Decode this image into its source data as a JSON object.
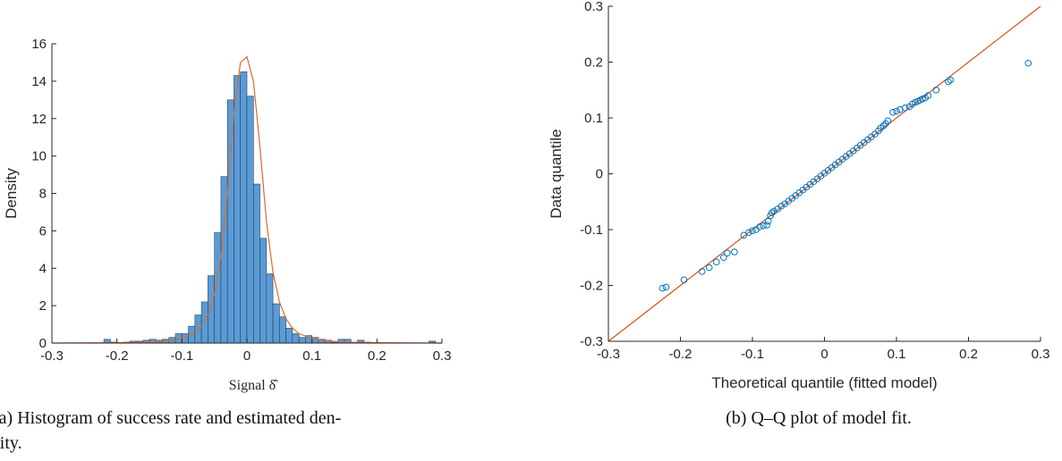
{
  "chart_data": [
    {
      "type": "bar",
      "xlabel": "Signal δ̂",
      "ylabel": "Density",
      "xlim": [
        -0.3,
        0.3
      ],
      "ylim": [
        0,
        16
      ],
      "xticks": [
        "-0.3",
        "-0.2",
        "-0.1",
        "0",
        "0.1",
        "0.2",
        "0.3"
      ],
      "yticks": [
        "0",
        "2",
        "4",
        "6",
        "8",
        "10",
        "12",
        "14",
        "16"
      ],
      "bar_color": "#5b9bd5",
      "curve_color": "#e0692c",
      "histogram": {
        "bin_width": 0.01,
        "bin_lefts": [
          -0.22,
          -0.21,
          -0.2,
          -0.19,
          -0.18,
          -0.17,
          -0.16,
          -0.15,
          -0.14,
          -0.13,
          -0.12,
          -0.11,
          -0.1,
          -0.09,
          -0.08,
          -0.07,
          -0.06,
          -0.05,
          -0.04,
          -0.03,
          -0.02,
          -0.01,
          0.0,
          0.01,
          0.02,
          0.03,
          0.04,
          0.05,
          0.06,
          0.07,
          0.08,
          0.09,
          0.1,
          0.11,
          0.12,
          0.13,
          0.14,
          0.15,
          0.16,
          0.17,
          0.18,
          0.19,
          0.2,
          0.21,
          0.22,
          0.23,
          0.24,
          0.25,
          0.26,
          0.27,
          0.28
        ],
        "values": [
          0.2,
          0.05,
          0.0,
          0.05,
          0.1,
          0.1,
          0.15,
          0.2,
          0.15,
          0.2,
          0.3,
          0.5,
          0.5,
          0.9,
          1.5,
          2.2,
          3.6,
          5.9,
          8.9,
          13.0,
          14.3,
          14.5,
          13.2,
          8.5,
          5.6,
          3.7,
          2.1,
          1.4,
          0.8,
          0.5,
          0.3,
          0.4,
          0.3,
          0.2,
          0.15,
          0.05,
          0.2,
          0.2,
          0.0,
          0.15,
          0.05,
          0.0,
          0.0,
          0.0,
          0.0,
          0.0,
          0.0,
          0.0,
          0.0,
          0.0,
          0.1
        ]
      },
      "density_curve": {
        "name": "estimated density",
        "x": [
          -0.3,
          -0.2,
          -0.15,
          -0.12,
          -0.1,
          -0.08,
          -0.07,
          -0.06,
          -0.05,
          -0.04,
          -0.03,
          -0.02,
          -0.01,
          0.0,
          0.01,
          0.02,
          0.03,
          0.04,
          0.05,
          0.06,
          0.07,
          0.08,
          0.1,
          0.12,
          0.15,
          0.2,
          0.3
        ],
        "y": [
          0.0,
          0.02,
          0.05,
          0.12,
          0.25,
          0.55,
          0.9,
          1.5,
          2.6,
          4.6,
          8.0,
          12.3,
          15.0,
          15.3,
          14.0,
          10.5,
          6.5,
          3.8,
          2.2,
          1.3,
          0.8,
          0.5,
          0.25,
          0.12,
          0.05,
          0.02,
          0.0
        ]
      },
      "caption": "(a) Histogram of success rate and estimated den-",
      "caption_line2": "sity."
    },
    {
      "type": "scatter",
      "xlabel": "Theoretical quantile (fitted model)",
      "ylabel": "Data quantile",
      "xlim": [
        -0.3,
        0.3
      ],
      "ylim": [
        -0.3,
        0.3
      ],
      "xticks": [
        "-0.3",
        "-0.2",
        "-0.1",
        "0",
        "0.1",
        "0.2",
        "0.3"
      ],
      "yticks": [
        "-0.3",
        "-0.2",
        "-0.1",
        "0",
        "0.1",
        "0.2",
        "0.3"
      ],
      "marker_color": "#0072bd",
      "line_color": "#d95319",
      "reference_line": {
        "x": [
          -0.3,
          0.3
        ],
        "y": [
          -0.3,
          0.3
        ]
      },
      "points": {
        "x": [
          -0.225,
          -0.22,
          -0.195,
          -0.17,
          -0.16,
          -0.15,
          -0.14,
          -0.135,
          -0.125,
          -0.112,
          -0.105,
          -0.1,
          -0.095,
          -0.09,
          -0.085,
          -0.08,
          -0.078,
          -0.075,
          -0.073,
          -0.07,
          -0.065,
          -0.06,
          -0.055,
          -0.05,
          -0.045,
          -0.04,
          -0.035,
          -0.03,
          -0.025,
          -0.02,
          -0.015,
          -0.01,
          -0.005,
          0.0,
          0.005,
          0.01,
          0.015,
          0.02,
          0.025,
          0.03,
          0.035,
          0.04,
          0.045,
          0.05,
          0.055,
          0.06,
          0.065,
          0.07,
          0.075,
          0.078,
          0.082,
          0.085,
          0.088,
          0.095,
          0.1,
          0.105,
          0.112,
          0.118,
          0.122,
          0.126,
          0.13,
          0.133,
          0.136,
          0.14,
          0.144,
          0.155,
          0.172,
          0.175,
          0.283
        ],
        "y": [
          -0.205,
          -0.203,
          -0.19,
          -0.175,
          -0.168,
          -0.158,
          -0.15,
          -0.142,
          -0.14,
          -0.11,
          -0.105,
          -0.102,
          -0.1,
          -0.095,
          -0.093,
          -0.092,
          -0.085,
          -0.075,
          -0.07,
          -0.067,
          -0.063,
          -0.058,
          -0.054,
          -0.049,
          -0.044,
          -0.039,
          -0.034,
          -0.029,
          -0.024,
          -0.019,
          -0.014,
          -0.009,
          -0.004,
          0.001,
          0.006,
          0.011,
          0.016,
          0.021,
          0.026,
          0.031,
          0.036,
          0.041,
          0.046,
          0.051,
          0.056,
          0.061,
          0.066,
          0.071,
          0.077,
          0.082,
          0.086,
          0.09,
          0.095,
          0.11,
          0.112,
          0.115,
          0.118,
          0.12,
          0.125,
          0.128,
          0.13,
          0.132,
          0.134,
          0.136,
          0.14,
          0.15,
          0.165,
          0.168,
          0.198
        ]
      },
      "caption": "(b) Q–Q plot of model fit."
    }
  ]
}
